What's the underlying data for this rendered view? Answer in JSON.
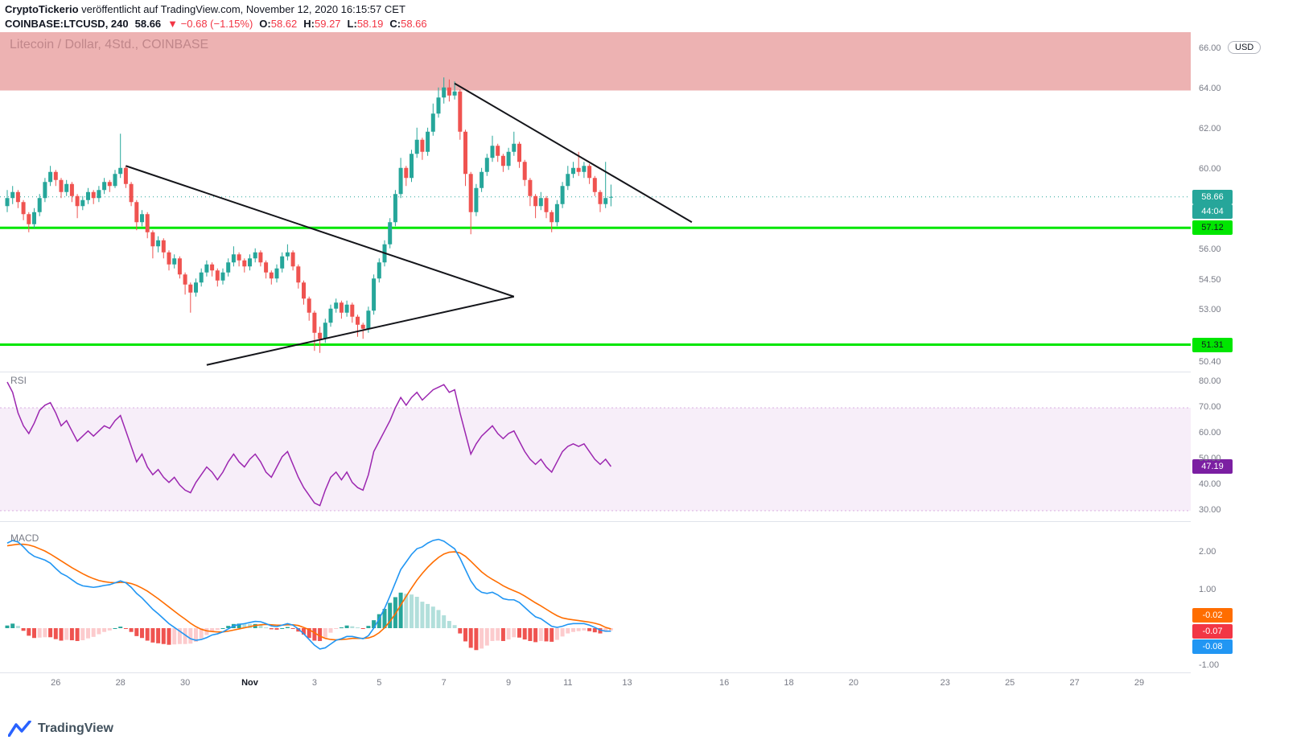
{
  "header": {
    "author": "CryptoTickerio",
    "byline": " veröffentlicht auf TradingView.com, November 12, 2020 16:15:57 CET",
    "symbol": "COINBASE:LTCUSD, 240",
    "last_price": "58.66",
    "change": "▼ −0.68 (−1.15%)",
    "open_label": "O:",
    "open": "58.62",
    "high_label": "H:",
    "high": "59.27",
    "low_label": "L:",
    "low": "58.19",
    "close_label": "C:",
    "close": "58.66"
  },
  "watermark": "Litecoin / Dollar, 4Std., COINBASE",
  "axis": {
    "currency": "USD"
  },
  "panes": {
    "rsi_label": "RSI",
    "macd_label": "MACD"
  },
  "badges": {
    "price": "58.66",
    "countdown": "44:04",
    "level1": "57.12",
    "level2": "51.31",
    "rsi": "47.19",
    "macd_signal": "-0.02",
    "macd_hist": "-0.07",
    "macd_line": "-0.08"
  },
  "footer": {
    "brand": "TradingView"
  },
  "colors": {
    "up": "#26a69a",
    "down": "#ef5350",
    "level": "#00e600",
    "zone": "rgba(215,84,85,0.45)",
    "rsi": "#9c27b0",
    "rsi_band": "rgba(156,39,176,0.08)",
    "rsi_band_border": "rgba(156,39,176,0.35)",
    "macd": "#2196f3",
    "signal": "#ff6d00",
    "hist_up": "#26a69a",
    "hist_up_weak": "#b2dfdb",
    "hist_dn": "#ef5350",
    "hist_dn_weak": "#fccbcd",
    "trendline": "#14151a"
  },
  "chart_data": {
    "type": "candlestick",
    "symbol": "COINBASE:LTCUSD",
    "interval": "240",
    "title": "Litecoin / Dollar, 4Std., COINBASE",
    "current_price": 58.66,
    "countdown": "44:04",
    "ylim": [
      49.97,
      66.85
    ],
    "price_axis_labels": [
      66.0,
      64.0,
      62.0,
      60.0,
      56.0,
      54.5,
      53.0,
      50.4
    ],
    "time_axis": [
      {
        "label": "26",
        "i": 9
      },
      {
        "label": "28",
        "i": 21
      },
      {
        "label": "30",
        "i": 33
      },
      {
        "label": "Nov",
        "i": 45,
        "major": true
      },
      {
        "label": "3",
        "i": 57
      },
      {
        "label": "5",
        "i": 69
      },
      {
        "label": "7",
        "i": 81
      },
      {
        "label": "9",
        "i": 93
      },
      {
        "label": "11",
        "i": 104
      },
      {
        "label": "13",
        "i": 115
      },
      {
        "label": "16",
        "i": 133
      },
      {
        "label": "18",
        "i": 145
      },
      {
        "label": "20",
        "i": 157
      },
      {
        "label": "23",
        "i": 174
      },
      {
        "label": "25",
        "i": 186
      },
      {
        "label": "27",
        "i": 198
      },
      {
        "label": "29",
        "i": 210
      }
    ],
    "zone": {
      "top": 66.85,
      "bottom": 63.95
    },
    "levels": [
      {
        "price": 57.12,
        "label": "57.12"
      },
      {
        "price": 51.31,
        "label": "51.31"
      }
    ],
    "trendlines": [
      {
        "from": {
          "i": 22,
          "p": 60.2
        },
        "to": {
          "i": 94,
          "p": 53.7
        }
      },
      {
        "from": {
          "i": 37,
          "p": 50.3
        },
        "to": {
          "i": 94,
          "p": 53.7
        }
      },
      {
        "from": {
          "i": 83,
          "p": 64.3
        },
        "to": {
          "i": 127,
          "p": 57.4
        }
      }
    ],
    "candles": [
      [
        58.2,
        59.0,
        57.9,
        58.6
      ],
      [
        58.6,
        59.2,
        58.3,
        58.9
      ],
      [
        58.9,
        59.0,
        58.1,
        58.4
      ],
      [
        58.4,
        58.5,
        57.5,
        57.8
      ],
      [
        57.8,
        57.9,
        56.9,
        57.3
      ],
      [
        57.3,
        58.1,
        57.1,
        57.9
      ],
      [
        57.9,
        58.8,
        57.7,
        58.6
      ],
      [
        58.6,
        59.6,
        58.4,
        59.4
      ],
      [
        59.4,
        60.2,
        59.2,
        59.9
      ],
      [
        59.9,
        60.0,
        59.2,
        59.5
      ],
      [
        59.5,
        59.6,
        58.6,
        58.9
      ],
      [
        58.9,
        59.5,
        58.7,
        59.3
      ],
      [
        59.3,
        59.4,
        58.4,
        58.7
      ],
      [
        58.7,
        58.8,
        57.6,
        58.2
      ],
      [
        58.2,
        58.7,
        58.0,
        58.5
      ],
      [
        58.5,
        59.1,
        58.3,
        58.9
      ],
      [
        58.9,
        59.0,
        58.3,
        58.6
      ],
      [
        58.6,
        59.2,
        58.4,
        59.0
      ],
      [
        59.0,
        59.6,
        58.8,
        59.4
      ],
      [
        59.4,
        59.5,
        58.9,
        59.2
      ],
      [
        59.2,
        60.0,
        59.1,
        59.8
      ],
      [
        59.8,
        61.8,
        59.6,
        60.1
      ],
      [
        60.1,
        60.2,
        59.1,
        59.3
      ],
      [
        59.3,
        59.4,
        58.2,
        58.4
      ],
      [
        58.4,
        58.5,
        57.0,
        57.4
      ],
      [
        57.4,
        58.0,
        57.2,
        57.8
      ],
      [
        57.8,
        57.9,
        56.6,
        56.9
      ],
      [
        56.9,
        57.0,
        55.6,
        56.2
      ],
      [
        56.2,
        56.7,
        55.9,
        56.5
      ],
      [
        56.5,
        56.6,
        55.6,
        55.9
      ],
      [
        55.9,
        56.0,
        55.0,
        55.3
      ],
      [
        55.3,
        55.8,
        55.1,
        55.6
      ],
      [
        55.6,
        55.7,
        54.6,
        54.8
      ],
      [
        54.8,
        54.9,
        53.8,
        54.3
      ],
      [
        54.3,
        54.4,
        52.9,
        53.9
      ],
      [
        53.9,
        54.6,
        53.7,
        54.4
      ],
      [
        54.4,
        55.1,
        54.2,
        54.9
      ],
      [
        54.9,
        55.5,
        54.7,
        55.3
      ],
      [
        55.3,
        55.4,
        54.7,
        55.0
      ],
      [
        55.0,
        55.1,
        54.2,
        54.5
      ],
      [
        54.5,
        55.1,
        54.3,
        54.9
      ],
      [
        54.9,
        55.6,
        54.7,
        55.4
      ],
      [
        55.4,
        56.2,
        55.2,
        55.8
      ],
      [
        55.8,
        55.9,
        55.2,
        55.5
      ],
      [
        55.5,
        55.6,
        54.9,
        55.2
      ],
      [
        55.2,
        55.8,
        55.0,
        55.6
      ],
      [
        55.6,
        56.1,
        55.4,
        55.9
      ],
      [
        55.9,
        56.0,
        55.2,
        55.4
      ],
      [
        55.4,
        55.5,
        54.6,
        54.9
      ],
      [
        54.9,
        55.0,
        54.3,
        54.6
      ],
      [
        54.6,
        55.3,
        54.4,
        55.1
      ],
      [
        55.1,
        55.9,
        54.9,
        55.7
      ],
      [
        55.7,
        56.3,
        55.5,
        55.9
      ],
      [
        55.9,
        56.0,
        55.0,
        55.2
      ],
      [
        55.2,
        55.3,
        54.1,
        54.4
      ],
      [
        54.4,
        54.5,
        53.3,
        53.6
      ],
      [
        53.6,
        53.7,
        52.5,
        52.9
      ],
      [
        52.9,
        53.0,
        51.0,
        51.9
      ],
      [
        51.9,
        52.2,
        50.9,
        51.6
      ],
      [
        51.6,
        52.6,
        51.4,
        52.4
      ],
      [
        52.4,
        53.3,
        52.2,
        53.1
      ],
      [
        53.1,
        53.6,
        52.9,
        53.4
      ],
      [
        53.4,
        53.5,
        52.6,
        52.9
      ],
      [
        52.9,
        53.5,
        52.7,
        53.3
      ],
      [
        53.3,
        53.4,
        52.4,
        52.7
      ],
      [
        52.7,
        52.8,
        51.7,
        52.3
      ],
      [
        52.3,
        52.4,
        51.6,
        52.1
      ],
      [
        52.1,
        53.2,
        51.9,
        53.0
      ],
      [
        53.0,
        54.8,
        52.8,
        54.6
      ],
      [
        54.6,
        55.6,
        54.4,
        55.4
      ],
      [
        55.4,
        56.5,
        55.2,
        56.3
      ],
      [
        56.3,
        57.6,
        56.1,
        57.4
      ],
      [
        57.4,
        59.0,
        57.2,
        58.8
      ],
      [
        58.8,
        60.6,
        58.6,
        60.1
      ],
      [
        60.1,
        60.2,
        59.2,
        59.6
      ],
      [
        59.6,
        61.0,
        59.4,
        60.8
      ],
      [
        60.8,
        62.1,
        60.6,
        61.5
      ],
      [
        61.5,
        61.6,
        60.5,
        60.9
      ],
      [
        60.9,
        62.1,
        60.7,
        61.9
      ],
      [
        61.9,
        63.3,
        61.7,
        62.8
      ],
      [
        62.8,
        64.1,
        62.6,
        63.6
      ],
      [
        63.6,
        64.6,
        63.3,
        64.1
      ],
      [
        64.1,
        64.5,
        63.4,
        63.7
      ],
      [
        63.7,
        64.4,
        63.5,
        63.9
      ],
      [
        63.9,
        64.0,
        61.5,
        61.9
      ],
      [
        61.9,
        62.0,
        59.2,
        59.8
      ],
      [
        59.8,
        59.9,
        56.8,
        57.9
      ],
      [
        57.9,
        59.3,
        57.7,
        59.1
      ],
      [
        59.1,
        60.1,
        58.9,
        59.9
      ],
      [
        59.9,
        60.8,
        59.7,
        60.6
      ],
      [
        60.6,
        61.7,
        60.4,
        61.2
      ],
      [
        61.2,
        61.3,
        60.4,
        60.7
      ],
      [
        60.7,
        60.8,
        59.9,
        60.2
      ],
      [
        60.2,
        61.1,
        60.0,
        60.9
      ],
      [
        60.9,
        61.9,
        60.7,
        61.3
      ],
      [
        61.3,
        61.4,
        60.1,
        60.4
      ],
      [
        60.4,
        60.5,
        59.2,
        59.5
      ],
      [
        59.5,
        59.6,
        58.2,
        58.7
      ],
      [
        58.7,
        58.8,
        57.6,
        58.2
      ],
      [
        58.2,
        58.9,
        58.0,
        58.6
      ],
      [
        58.6,
        58.7,
        57.6,
        57.9
      ],
      [
        57.9,
        58.0,
        56.9,
        57.4
      ],
      [
        57.4,
        58.5,
        57.2,
        58.3
      ],
      [
        58.3,
        59.4,
        58.1,
        59.2
      ],
      [
        59.2,
        60.2,
        59.0,
        59.8
      ],
      [
        59.8,
        60.4,
        59.6,
        60.1
      ],
      [
        60.1,
        60.9,
        59.7,
        59.9
      ],
      [
        59.9,
        60.4,
        59.6,
        60.2
      ],
      [
        60.2,
        60.3,
        59.3,
        59.6
      ],
      [
        59.6,
        59.7,
        58.7,
        58.9
      ],
      [
        58.9,
        59.0,
        57.9,
        58.3
      ],
      [
        58.3,
        60.4,
        58.1,
        58.6
      ],
      [
        58.62,
        59.27,
        58.19,
        58.66
      ]
    ],
    "rsi": {
      "values": [
        80,
        76,
        68,
        63,
        60,
        64,
        69,
        71,
        72,
        68,
        63,
        65,
        61,
        57,
        59,
        61,
        59,
        61,
        63,
        62,
        65,
        67,
        61,
        55,
        49,
        52,
        47,
        44,
        46,
        43,
        41,
        43,
        40,
        38,
        37,
        41,
        44,
        47,
        45,
        42,
        45,
        49,
        52,
        49,
        47,
        50,
        52,
        49,
        45,
        43,
        47,
        51,
        53,
        48,
        43,
        39,
        36,
        33,
        32,
        38,
        43,
        45,
        42,
        45,
        41,
        39,
        38,
        44,
        53,
        57,
        61,
        65,
        70,
        74,
        71,
        74,
        76,
        73,
        75,
        77,
        78,
        79,
        76,
        77,
        68,
        60,
        52,
        56,
        59,
        61,
        63,
        60,
        58,
        60,
        61,
        57,
        53,
        50,
        48,
        50,
        47,
        45,
        49,
        53,
        55,
        56,
        55,
        56,
        53,
        50,
        48,
        50,
        47.19
      ],
      "last": 47.19,
      "band": [
        30,
        70
      ],
      "axis_labels": [
        80,
        70,
        60,
        50,
        40,
        30
      ]
    },
    "macd": {
      "macd": [
        2.25,
        2.32,
        2.28,
        2.15,
        2.0,
        1.9,
        1.85,
        1.8,
        1.72,
        1.58,
        1.45,
        1.38,
        1.28,
        1.18,
        1.12,
        1.1,
        1.08,
        1.1,
        1.13,
        1.15,
        1.2,
        1.25,
        1.2,
        1.08,
        0.92,
        0.8,
        0.65,
        0.5,
        0.38,
        0.25,
        0.12,
        0.02,
        -0.08,
        -0.18,
        -0.28,
        -0.32,
        -0.3,
        -0.25,
        -0.18,
        -0.15,
        -0.1,
        -0.02,
        0.06,
        0.1,
        0.12,
        0.15,
        0.18,
        0.17,
        0.12,
        0.06,
        0.04,
        0.08,
        0.12,
        0.08,
        -0.02,
        -0.15,
        -0.3,
        -0.45,
        -0.55,
        -0.52,
        -0.42,
        -0.32,
        -0.28,
        -0.22,
        -0.22,
        -0.25,
        -0.28,
        -0.2,
        0.0,
        0.25,
        0.52,
        0.85,
        1.2,
        1.55,
        1.75,
        1.95,
        2.1,
        2.15,
        2.25,
        2.32,
        2.35,
        2.3,
        2.2,
        2.1,
        1.85,
        1.55,
        1.25,
        1.05,
        0.95,
        0.92,
        0.95,
        0.88,
        0.78,
        0.75,
        0.75,
        0.68,
        0.55,
        0.42,
        0.3,
        0.25,
        0.15,
        0.05,
        0.02,
        0.05,
        0.1,
        0.12,
        0.12,
        0.12,
        0.08,
        0.02,
        -0.05,
        -0.08,
        -0.08
      ],
      "signal": [
        2.18,
        2.2,
        2.22,
        2.22,
        2.2,
        2.16,
        2.1,
        2.04,
        1.96,
        1.87,
        1.78,
        1.69,
        1.6,
        1.52,
        1.44,
        1.37,
        1.31,
        1.26,
        1.23,
        1.21,
        1.2,
        1.21,
        1.21,
        1.18,
        1.13,
        1.06,
        0.98,
        0.88,
        0.78,
        0.67,
        0.56,
        0.45,
        0.34,
        0.24,
        0.13,
        0.04,
        -0.03,
        -0.07,
        -0.09,
        -0.1,
        -0.1,
        -0.08,
        -0.05,
        -0.02,
        0.01,
        0.04,
        0.07,
        0.09,
        0.1,
        0.09,
        0.08,
        0.08,
        0.09,
        0.09,
        0.07,
        0.02,
        -0.04,
        -0.12,
        -0.21,
        -0.27,
        -0.3,
        -0.31,
        -0.3,
        -0.29,
        -0.27,
        -0.27,
        -0.27,
        -0.26,
        -0.21,
        -0.12,
        0.01,
        0.18,
        0.38,
        0.61,
        0.84,
        1.06,
        1.27,
        1.45,
        1.61,
        1.75,
        1.87,
        1.96,
        2.01,
        2.02,
        1.99,
        1.9,
        1.77,
        1.63,
        1.49,
        1.38,
        1.29,
        1.21,
        1.12,
        1.05,
        0.99,
        0.93,
        0.85,
        0.76,
        0.67,
        0.59,
        0.5,
        0.41,
        0.33,
        0.27,
        0.24,
        0.22,
        0.2,
        0.18,
        0.16,
        0.13,
        0.09,
        0.02,
        -0.02
      ],
      "axis_labels": [
        2,
        1,
        -1
      ],
      "last_macd": -0.08,
      "last_signal": -0.02,
      "last_hist": -0.07
    }
  }
}
